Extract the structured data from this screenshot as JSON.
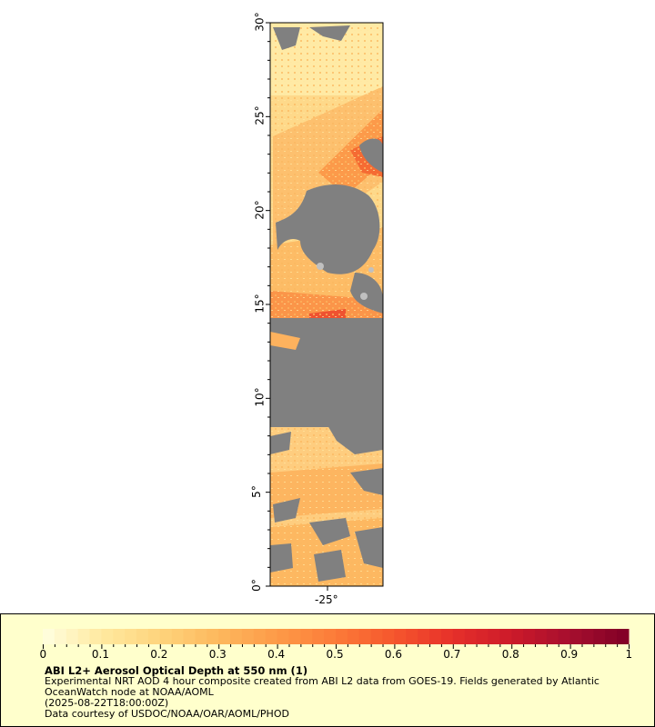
{
  "map": {
    "lat_labels": [
      "0°",
      "5°",
      "10°",
      "15°",
      "20°",
      "25°",
      "30°"
    ],
    "lon_labels": [
      "-25°"
    ],
    "lat_range": [
      0,
      30
    ],
    "land_color": "#808080",
    "missing_color": "#c0c0c0"
  },
  "colorbar": {
    "min": 0,
    "max": 1,
    "tick_labels": [
      "0",
      "0.1",
      "0.2",
      "0.3",
      "0.4",
      "0.5",
      "0.6",
      "0.7",
      "0.8",
      "0.9",
      "1"
    ],
    "colors": [
      "#ffffe0",
      "#ffe9a0",
      "#fed47c",
      "#fdb85d",
      "#fd9a48",
      "#fc7b38",
      "#f5562d",
      "#e6302a",
      "#cc1a2a",
      "#a60e2e",
      "#800026"
    ]
  },
  "legend": {
    "title": "ABI L2+ Aerosol Optical Depth at 550 nm (1)",
    "line1": "Experimental NRT AOD 4 hour composite created from ABI L2 data from GOES-19. Fields generated by Atlantic OceanWatch node at NOAA/AOML",
    "line2": "(2025-08-22T18:00:00Z)",
    "line3": "Data courtesy of USDOC/NOAA/OAR/AOML/PHOD"
  }
}
